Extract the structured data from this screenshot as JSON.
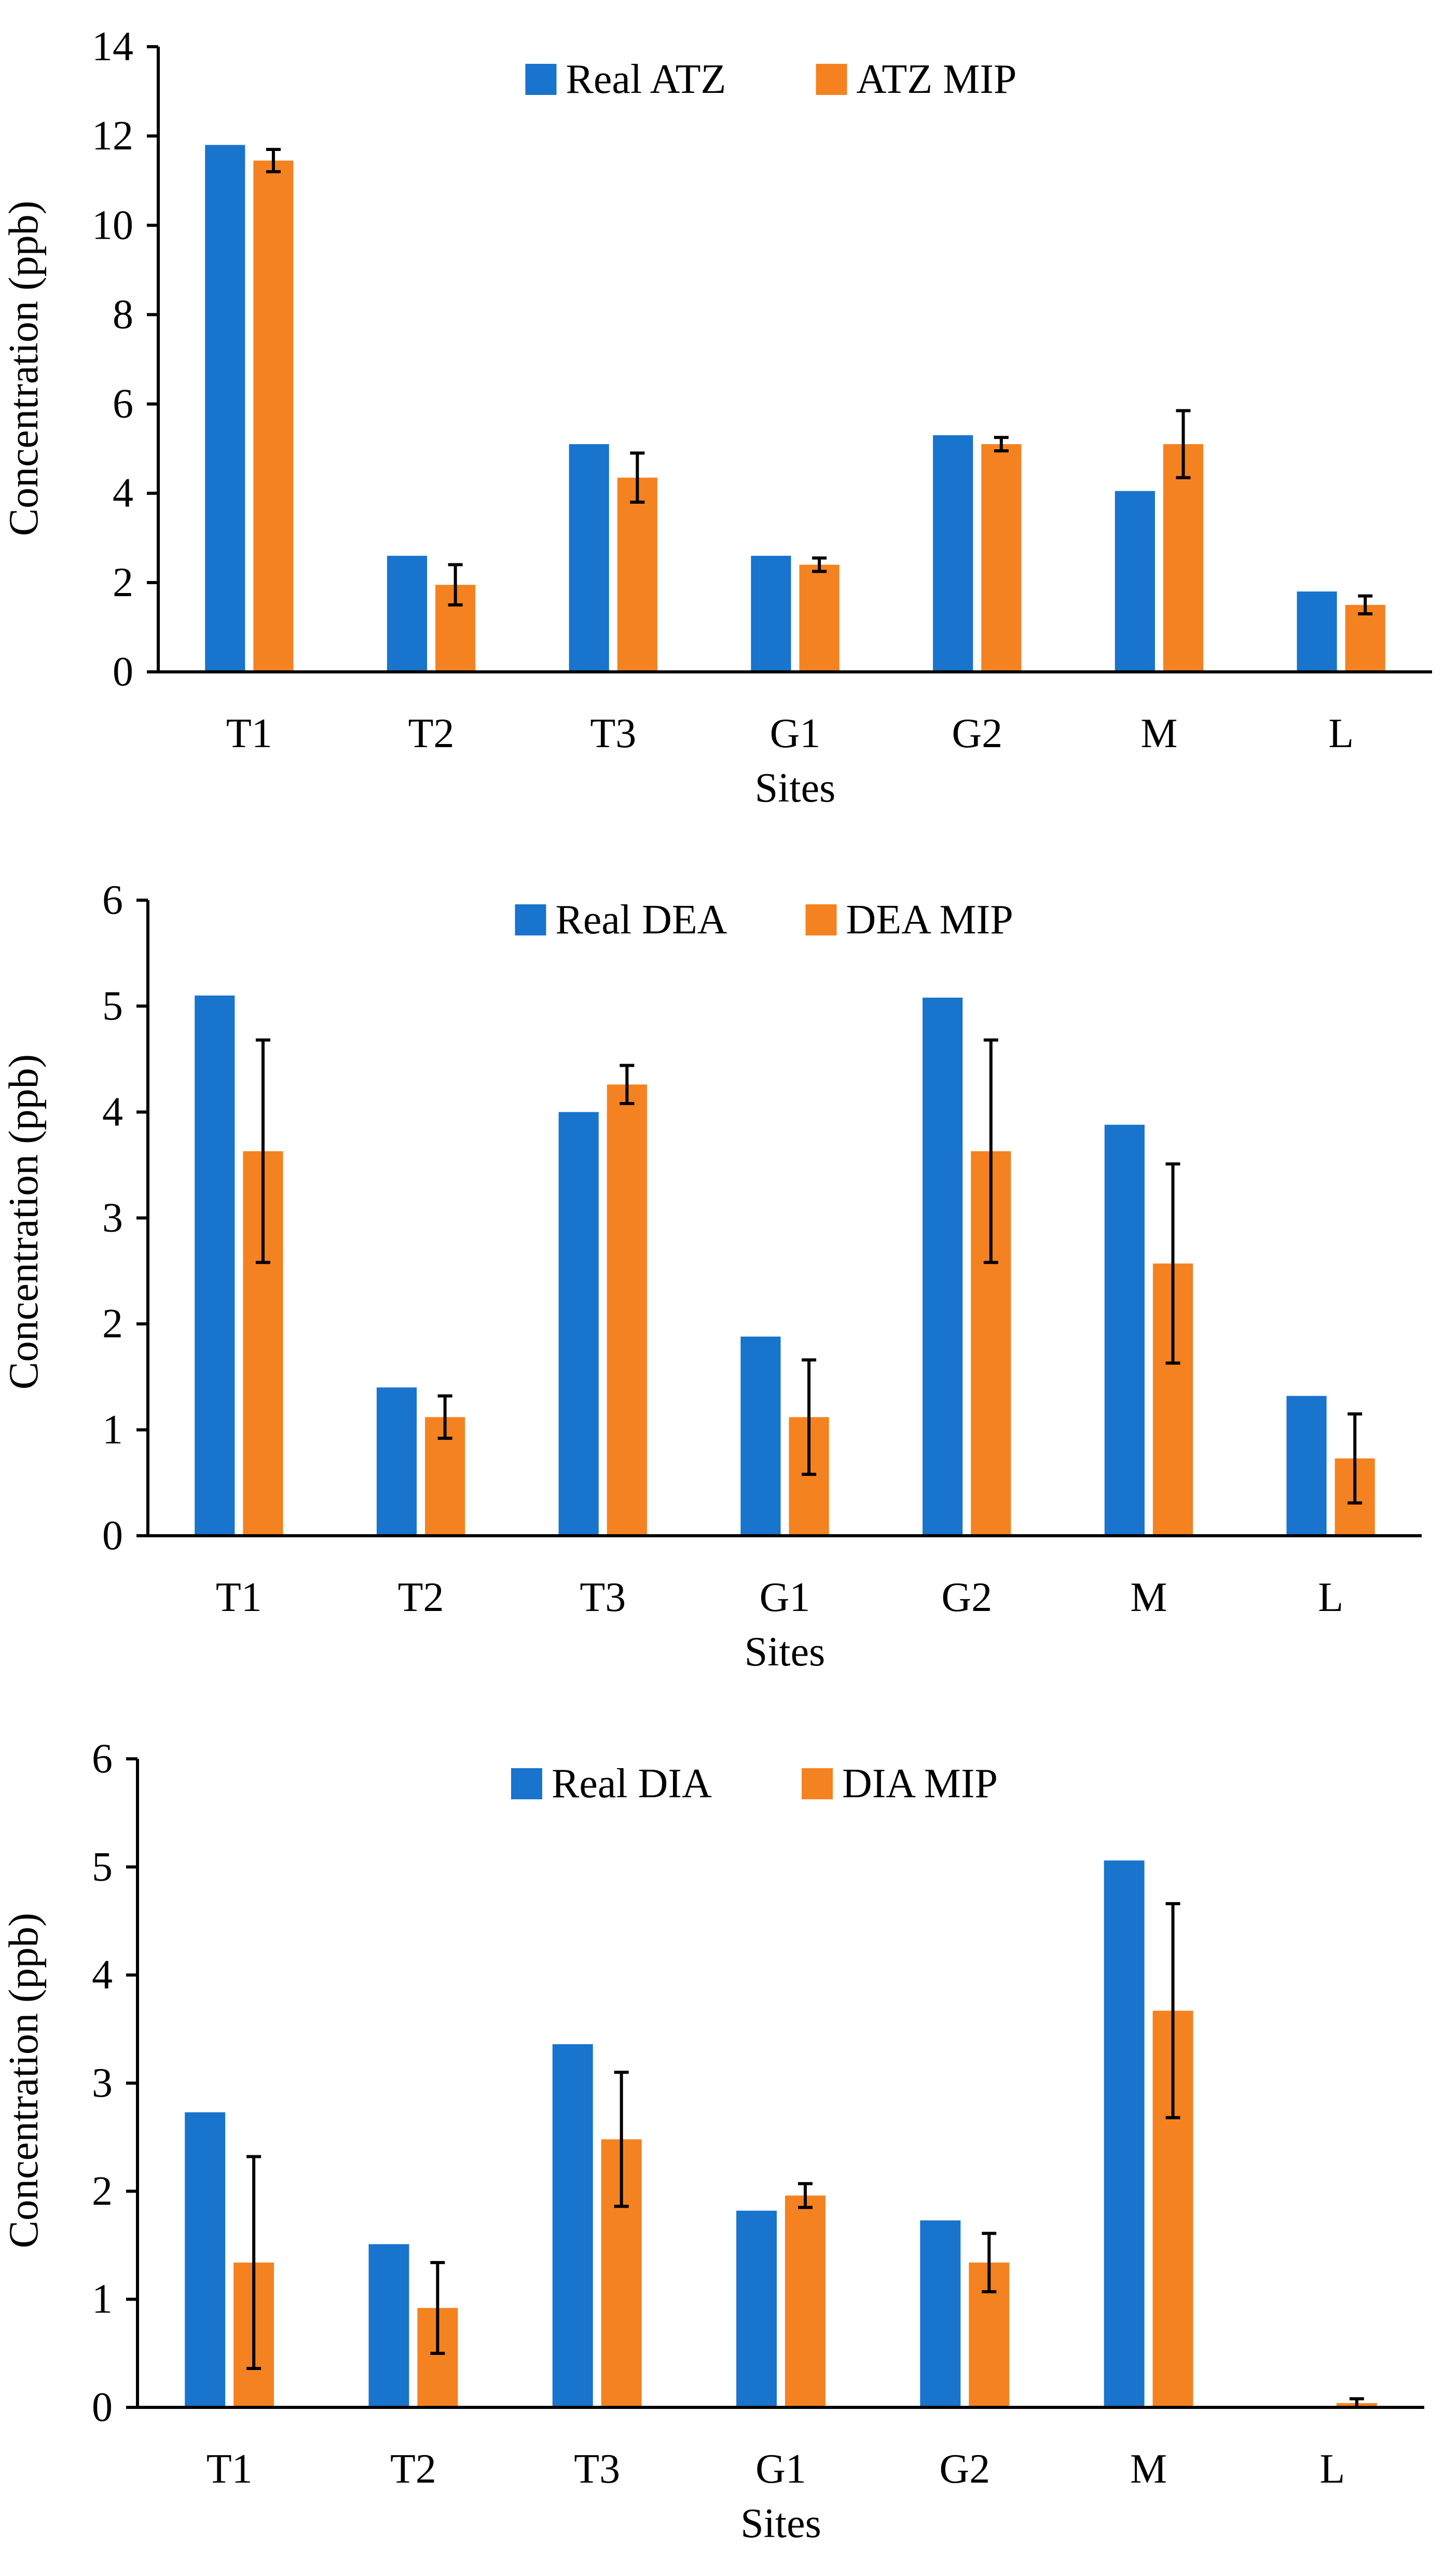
{
  "colors": {
    "real": "#1874CD",
    "mip": "#F58220",
    "axis": "#000000",
    "error_bar": "#000000"
  },
  "chart_data": [
    {
      "type": "bar",
      "categories": [
        "T1",
        "T2",
        "T3",
        "G1",
        "G2",
        "M",
        "L"
      ],
      "xlabel": "Sites",
      "ylabel": "Concentration (ppb)",
      "ylim": [
        0,
        14
      ],
      "yticks": [
        0,
        2,
        4,
        6,
        8,
        10,
        12,
        14
      ],
      "ytick_labels": [
        "0",
        "2",
        "4",
        "6",
        "8",
        "10",
        "12",
        "14"
      ],
      "grid": false,
      "legend": "top-center",
      "series": [
        {
          "name": "Real ATZ",
          "color_key": "real",
          "values": [
            11.8,
            2.6,
            5.1,
            2.6,
            5.3,
            4.05,
            1.8
          ]
        },
        {
          "name": "ATZ MIP",
          "color_key": "mip",
          "values": [
            11.45,
            1.95,
            4.35,
            2.4,
            5.1,
            5.1,
            1.5
          ],
          "errors": [
            0.25,
            0.45,
            0.55,
            0.15,
            0.15,
            0.75,
            0.2
          ]
        }
      ]
    },
    {
      "type": "bar",
      "categories": [
        "T1",
        "T2",
        "T3",
        "G1",
        "G2",
        "M",
        "L"
      ],
      "xlabel": "Sites",
      "ylabel": "Concentration (ppb)",
      "ylim": [
        0,
        6
      ],
      "yticks": [
        0,
        1,
        2,
        3,
        4,
        5,
        6
      ],
      "ytick_labels": [
        "0",
        "1",
        "2",
        "3",
        "4",
        "5",
        "6"
      ],
      "grid": false,
      "legend": "top-center",
      "series": [
        {
          "name": "Real DEA",
          "color_key": "real",
          "values": [
            5.1,
            1.4,
            4.0,
            1.88,
            5.08,
            3.88,
            1.32
          ]
        },
        {
          "name": "DEA MIP",
          "color_key": "mip",
          "values": [
            3.63,
            1.12,
            4.26,
            1.12,
            3.63,
            2.57,
            0.73
          ],
          "errors": [
            1.05,
            0.2,
            0.18,
            0.54,
            1.05,
            0.94,
            0.42
          ]
        }
      ]
    },
    {
      "type": "bar",
      "categories": [
        "T1",
        "T2",
        "T3",
        "G1",
        "G2",
        "M",
        "L"
      ],
      "xlabel": "Sites",
      "ylabel": "Concentration (ppb)",
      "ylim": [
        0,
        6
      ],
      "yticks": [
        0,
        1,
        2,
        3,
        4,
        5,
        6
      ],
      "ytick_labels": [
        "0",
        "1",
        "2",
        "3",
        "4",
        "5",
        "6"
      ],
      "grid": false,
      "legend": "top-center",
      "series": [
        {
          "name": "Real DIA",
          "color_key": "real",
          "values": [
            2.73,
            1.51,
            3.36,
            1.82,
            1.73,
            5.06,
            0.0
          ]
        },
        {
          "name": "DIA MIP",
          "color_key": "mip",
          "values": [
            1.34,
            0.92,
            2.48,
            1.96,
            1.34,
            3.67,
            0.04
          ],
          "errors": [
            0.98,
            0.42,
            0.62,
            0.11,
            0.27,
            0.99,
            0.04
          ]
        }
      ]
    }
  ]
}
